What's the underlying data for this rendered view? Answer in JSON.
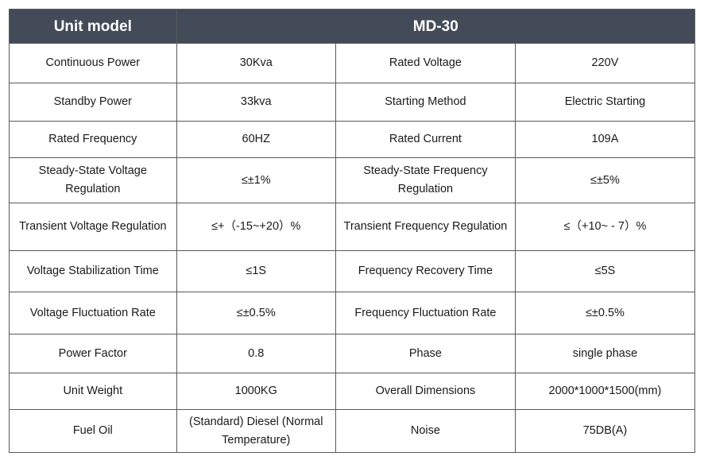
{
  "header": {
    "model_label": "Unit model",
    "model_value": "MD-30"
  },
  "rows": [
    {
      "label1": "Continuous Power",
      "value1": "30Kva",
      "label2": "Rated Voltage",
      "value2": "220V"
    },
    {
      "label1": "Standby Power",
      "value1": "33kva",
      "label2": "Starting Method",
      "value2": "Electric Starting"
    },
    {
      "label1": "Rated Frequency",
      "value1": "60HZ",
      "label2": "Rated Current",
      "value2": "109A"
    },
    {
      "label1": "Steady-State Voltage Regulation",
      "value1": "≤±1%",
      "label2": "Steady-State Frequency Regulation",
      "value2": "≤±5%"
    },
    {
      "label1": "Transient Voltage Regulation",
      "value1": "≤+（-15~+20）%",
      "label2": "Transient Frequency Regulation",
      "value2": "≤（+10~ - 7）%"
    },
    {
      "label1": "Voltage Stabilization Time",
      "value1": "≤1S",
      "label2": "Frequency Recovery Time",
      "value2": "≤5S"
    },
    {
      "label1": "Voltage Fluctuation Rate",
      "value1": "≤±0.5%",
      "label2": "Frequency Fluctuation Rate",
      "value2": "≤±0.5%"
    },
    {
      "label1": "Power Factor",
      "value1": "0.8",
      "label2": "Phase",
      "value2": "single phase"
    },
    {
      "label1": "Unit Weight",
      "value1": "1000KG",
      "label2": "Overall Dimensions",
      "value2": "2000*1000*1500(mm)"
    },
    {
      "label1": "Fuel Oil",
      "value1": "(Standard) Diesel (Normal Temperature)",
      "label2": "Noise",
      "value2": "75DB(A)"
    }
  ]
}
